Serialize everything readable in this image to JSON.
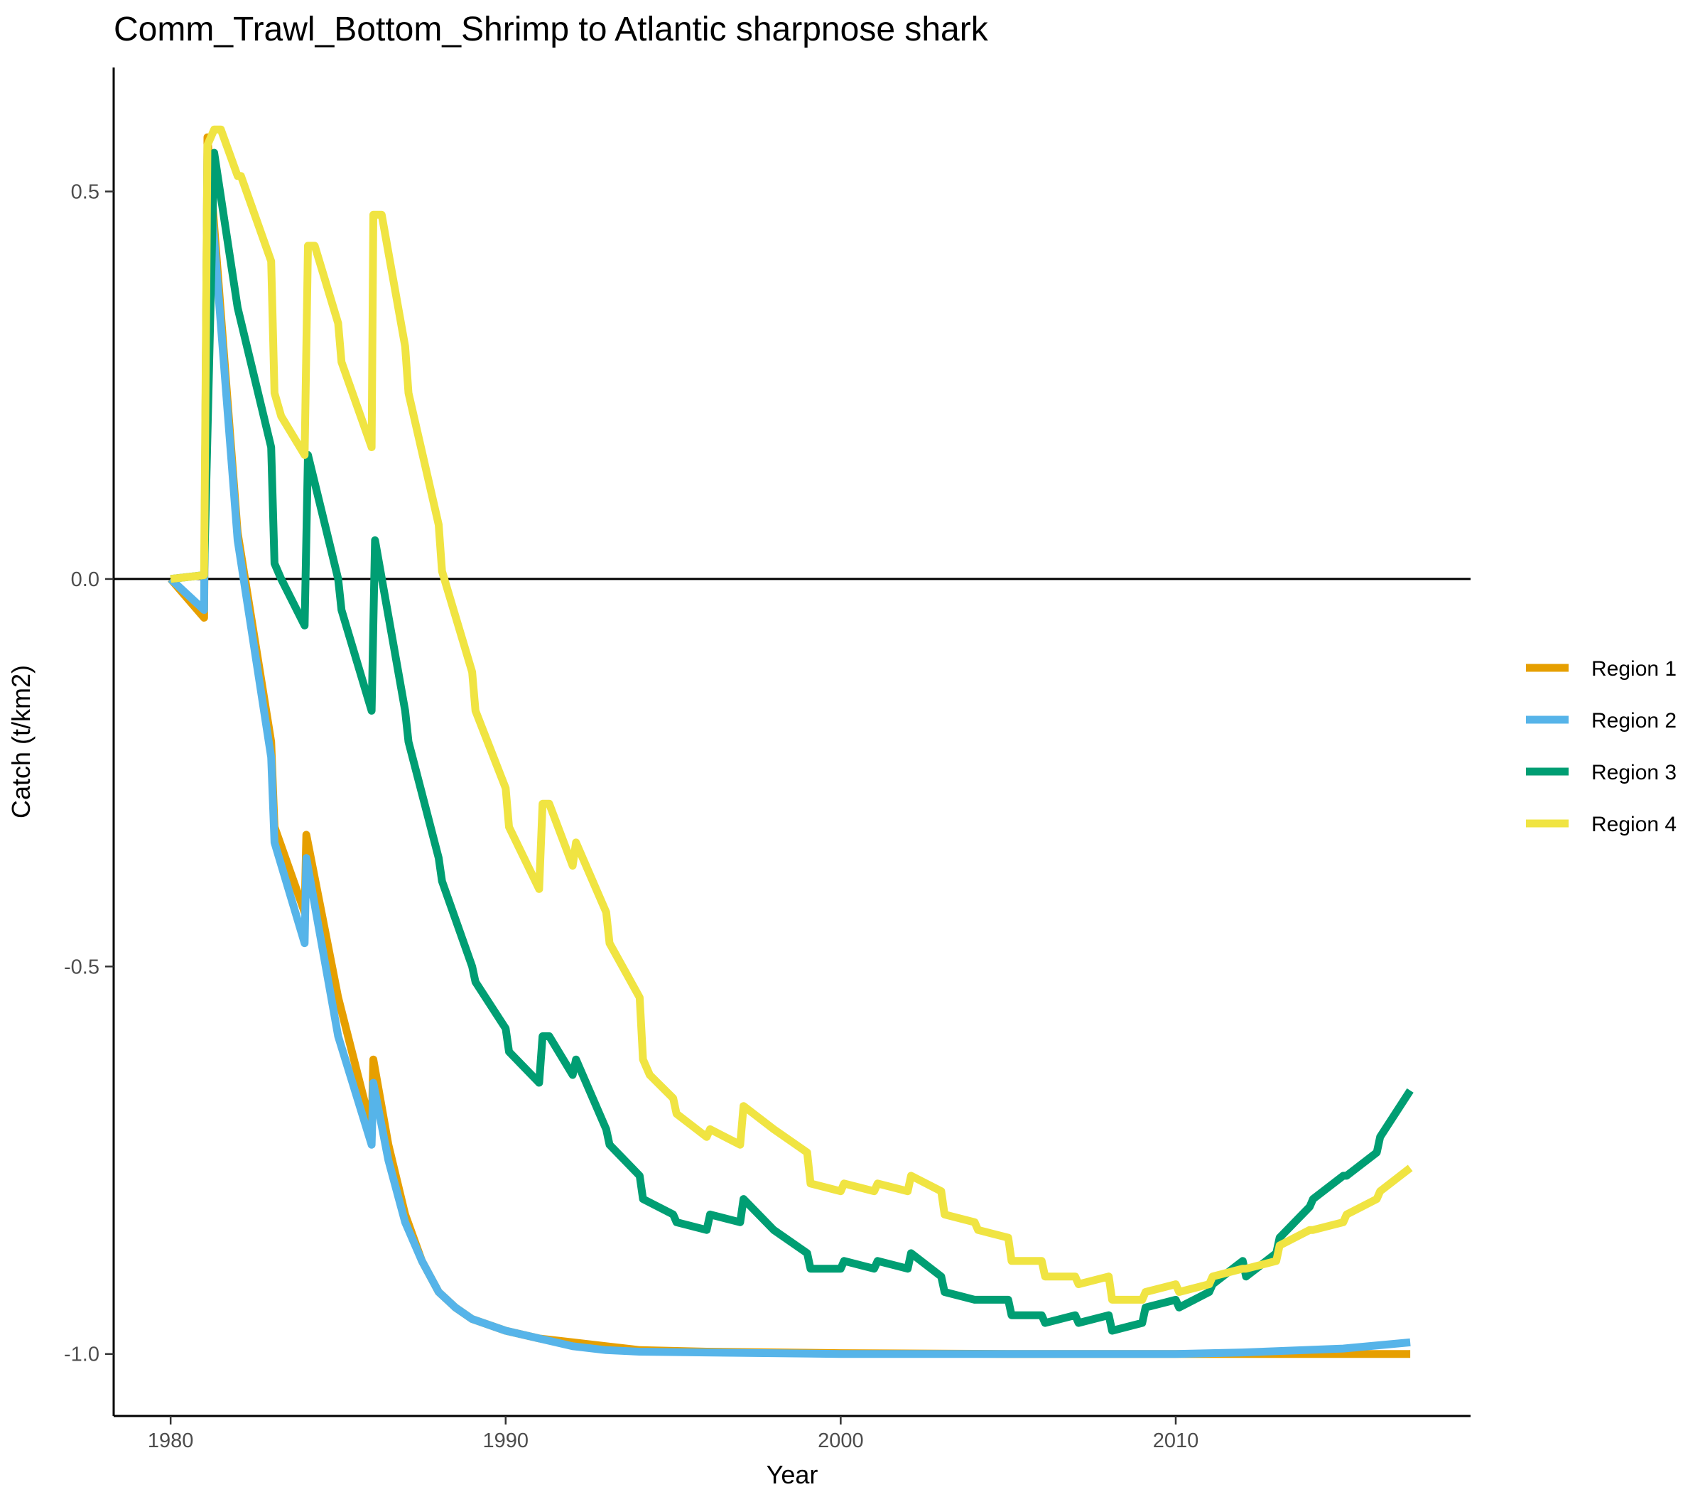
{
  "chart_data": {
    "type": "line",
    "title": "Comm_Trawl_Bottom_Shrimp to Atlantic sharpnose shark",
    "xlabel": "Year",
    "ylabel": "Catch (t/km2)",
    "xlim": [
      1978.3,
      2018.8
    ],
    "ylim": [
      -1.08,
      0.66
    ],
    "x_ticks": [
      1980,
      1990,
      2000,
      2010
    ],
    "x_tick_labels": [
      "1980",
      "1990",
      "2000",
      "2010"
    ],
    "y_ticks": [
      0.5,
      0.0,
      -0.5,
      -1.0
    ],
    "y_tick_labels": [
      "0.5",
      "0.0",
      "-0.5",
      "-1.0"
    ],
    "zero_line": 0,
    "grid": false,
    "legend_position": "right",
    "series": [
      {
        "name": "Region 1",
        "color": "#E69F00",
        "x": [
          1980,
          1981,
          1981.1,
          1982,
          1983,
          1983.1,
          1984,
          1984.05,
          1985,
          1986,
          1986.05,
          1986.5,
          1987,
          1987.5,
          1988,
          1988.5,
          1989,
          1990,
          1991,
          1992,
          1993,
          1994,
          1996,
          2000,
          2005,
          2010,
          2015,
          2017
        ],
        "y": [
          0.0,
          -0.05,
          0.57,
          0.06,
          -0.21,
          -0.32,
          -0.43,
          -0.33,
          -0.54,
          -0.71,
          -0.62,
          -0.73,
          -0.82,
          -0.88,
          -0.92,
          -0.94,
          -0.955,
          -0.97,
          -0.98,
          -0.985,
          -0.99,
          -0.995,
          -0.997,
          -0.999,
          -1.0,
          -1.0,
          -1.0,
          -1.0
        ]
      },
      {
        "name": "Region 2",
        "color": "#56B4E9",
        "x": [
          1980,
          1981,
          1981.1,
          1982,
          1983,
          1983.1,
          1984,
          1984.05,
          1985,
          1986,
          1986.05,
          1986.5,
          1987,
          1987.5,
          1988,
          1988.5,
          1989,
          1990,
          1991,
          1992,
          1993,
          1994,
          1996,
          2000,
          2005,
          2010,
          2012,
          2015,
          2017
        ],
        "y": [
          0.0,
          -0.04,
          0.55,
          0.05,
          -0.23,
          -0.34,
          -0.47,
          -0.36,
          -0.59,
          -0.73,
          -0.65,
          -0.75,
          -0.83,
          -0.88,
          -0.92,
          -0.94,
          -0.955,
          -0.97,
          -0.98,
          -0.99,
          -0.995,
          -0.997,
          -0.998,
          -1.0,
          -1.0,
          -1.0,
          -0.998,
          -0.993,
          -0.985
        ]
      },
      {
        "name": "Region 3",
        "color": "#009E73",
        "x": [
          1980,
          1981,
          1981.3,
          1982,
          1983,
          1983.1,
          1983.3,
          1984,
          1984.1,
          1985,
          1985.1,
          1986,
          1986.1,
          1987,
          1987.1,
          1988,
          1988.1,
          1989,
          1989.1,
          1990,
          1990.1,
          1991,
          1991.1,
          1991.3,
          1992,
          1992.1,
          1993,
          1993.1,
          1994,
          1994.1,
          1995,
          1995.1,
          1996,
          1996.1,
          1997,
          1997.1,
          1998,
          1999,
          1999.1,
          2000,
          2000.1,
          2001,
          2001.1,
          2002,
          2002.1,
          2003,
          2003.1,
          2004,
          2004.1,
          2005,
          2005.1,
          2006,
          2006.1,
          2007,
          2007.1,
          2008,
          2008.1,
          2009,
          2009.1,
          2010,
          2010.1,
          2011,
          2011.1,
          2012,
          2012.1,
          2013,
          2013.1,
          2014,
          2014.1,
          2015,
          2015.1,
          2016,
          2016.1,
          2017
        ],
        "y": [
          0.0,
          0.005,
          0.55,
          0.35,
          0.17,
          0.02,
          0.0,
          -0.06,
          0.16,
          0.0,
          -0.04,
          -0.17,
          0.05,
          -0.17,
          -0.21,
          -0.36,
          -0.39,
          -0.5,
          -0.52,
          -0.58,
          -0.61,
          -0.65,
          -0.59,
          -0.59,
          -0.64,
          -0.62,
          -0.71,
          -0.73,
          -0.77,
          -0.8,
          -0.82,
          -0.83,
          -0.84,
          -0.82,
          -0.83,
          -0.8,
          -0.84,
          -0.87,
          -0.89,
          -0.89,
          -0.88,
          -0.89,
          -0.88,
          -0.89,
          -0.87,
          -0.9,
          -0.92,
          -0.93,
          -0.93,
          -0.93,
          -0.95,
          -0.95,
          -0.96,
          -0.95,
          -0.96,
          -0.95,
          -0.97,
          -0.96,
          -0.94,
          -0.93,
          -0.94,
          -0.92,
          -0.91,
          -0.88,
          -0.9,
          -0.87,
          -0.85,
          -0.81,
          -0.8,
          -0.77,
          -0.77,
          -0.74,
          -0.72,
          -0.66
        ]
      },
      {
        "name": "Region 4",
        "color": "#F0E442",
        "x": [
          1980,
          1981,
          1981.1,
          1981.3,
          1981.5,
          1982,
          1982.1,
          1983,
          1983.1,
          1983.3,
          1984,
          1984.1,
          1984.3,
          1985,
          1985.1,
          1986,
          1986.05,
          1986.3,
          1987,
          1987.1,
          1988,
          1988.1,
          1989,
          1989.1,
          1990,
          1990.1,
          1991,
          1991.1,
          1991.3,
          1992,
          1992.1,
          1993,
          1993.1,
          1994,
          1994.1,
          1994.3,
          1995,
          1995.1,
          1996,
          1996.1,
          1997,
          1997.1,
          1998,
          1999,
          1999.1,
          2000,
          2000.1,
          2001,
          2001.1,
          2002,
          2002.1,
          2003,
          2003.1,
          2004,
          2004.1,
          2005,
          2005.1,
          2006,
          2006.1,
          2007,
          2007.1,
          2008,
          2008.1,
          2009,
          2009.1,
          2010,
          2010.1,
          2011,
          2011.1,
          2012,
          2012.1,
          2013,
          2013.1,
          2014,
          2014.1,
          2015,
          2015.1,
          2016,
          2016.1,
          2017
        ],
        "y": [
          0.0,
          0.005,
          0.56,
          0.58,
          0.58,
          0.52,
          0.52,
          0.41,
          0.24,
          0.21,
          0.16,
          0.43,
          0.43,
          0.33,
          0.28,
          0.17,
          0.47,
          0.47,
          0.3,
          0.24,
          0.07,
          0.01,
          -0.12,
          -0.17,
          -0.27,
          -0.32,
          -0.4,
          -0.29,
          -0.29,
          -0.37,
          -0.34,
          -0.43,
          -0.47,
          -0.54,
          -0.62,
          -0.64,
          -0.67,
          -0.69,
          -0.72,
          -0.71,
          -0.73,
          -0.68,
          -0.71,
          -0.74,
          -0.78,
          -0.79,
          -0.78,
          -0.79,
          -0.78,
          -0.79,
          -0.77,
          -0.79,
          -0.82,
          -0.83,
          -0.84,
          -0.85,
          -0.88,
          -0.88,
          -0.9,
          -0.9,
          -0.91,
          -0.9,
          -0.93,
          -0.93,
          -0.92,
          -0.91,
          -0.92,
          -0.91,
          -0.9,
          -0.89,
          -0.89,
          -0.88,
          -0.86,
          -0.84,
          -0.84,
          -0.83,
          -0.82,
          -0.8,
          -0.79,
          -0.76
        ]
      }
    ]
  }
}
